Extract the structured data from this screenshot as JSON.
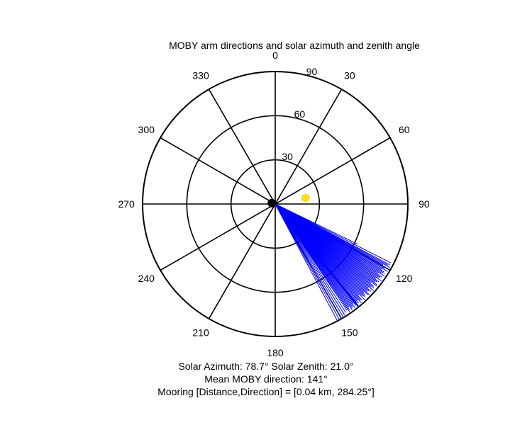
{
  "chart_data": {
    "type": "polar",
    "title": "MOBY arm directions and solar azimuth and zenith angle",
    "angle_ticks": [
      "0",
      "30",
      "60",
      "90",
      "120",
      "150",
      "180",
      "210",
      "240",
      "270",
      "300",
      "330"
    ],
    "angle_tick_values": [
      0,
      30,
      60,
      90,
      120,
      150,
      180,
      210,
      240,
      270,
      300,
      330
    ],
    "radial_ticks": [
      "30",
      "60",
      "90"
    ],
    "radial_tick_values": [
      30,
      60,
      90
    ],
    "radial_range": [
      0,
      90
    ],
    "angle_zero": "top",
    "angle_direction": "clockwise",
    "grid": true,
    "series": [
      {
        "type": "rays",
        "color": "#0000ff",
        "directions_deg": [
          141,
          116,
          117,
          118,
          118.5,
          119,
          119.5,
          120,
          120.5,
          121,
          121.5,
          122,
          122.5,
          123,
          123.5,
          124,
          124.5,
          125,
          125.5,
          126,
          126.5,
          127,
          127.5,
          128,
          128.5,
          129,
          129.5,
          130,
          130.5,
          131,
          131.5,
          132,
          132.5,
          133,
          133.5,
          134,
          134.5,
          135,
          135.5,
          136,
          136.5,
          137,
          137.5,
          138,
          138.5,
          139,
          139.5,
          140,
          140.5,
          141,
          141.5,
          142,
          142.5,
          143,
          143.5,
          144,
          144.5,
          145,
          145.5,
          146,
          147,
          148,
          149,
          150,
          151,
          152
        ],
        "radii": [
          90,
          62,
          88,
          88,
          87,
          89,
          84,
          88,
          86,
          89,
          85,
          87,
          88,
          86,
          89,
          84,
          88,
          87,
          86,
          89,
          85,
          88,
          87,
          86,
          88,
          89,
          84,
          87,
          88,
          86,
          89,
          85,
          88,
          87,
          86,
          89,
          88,
          85,
          87,
          88,
          86,
          89,
          84,
          88,
          87,
          89,
          86,
          88,
          87,
          89,
          88,
          86,
          89,
          87,
          88,
          89,
          86,
          88,
          89,
          87,
          88,
          89,
          90,
          89,
          90,
          90
        ]
      },
      {
        "type": "marker",
        "name": "sun",
        "color": "#ffd700",
        "azimuth_deg": 78.7,
        "zenith_deg": 21.0
      },
      {
        "type": "marker",
        "name": "mooring",
        "color": "#000000",
        "direction_deg": 284.25,
        "distance_km": 0.04
      }
    ]
  },
  "captions": {
    "line1": "Solar Azimuth: 78.7°    Solar Zenith: 21.0°",
    "line2": "Mean MOBY direction: 141°",
    "line3": "Mooring [Distance,Direction] = [0.04 km, 284.25°]"
  }
}
